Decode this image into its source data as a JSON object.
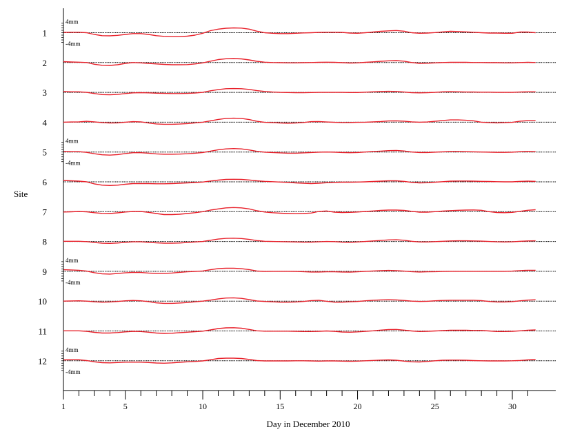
{
  "chart_data": {
    "type": "line",
    "title": "",
    "xlabel": "Day in December 2010",
    "ylabel": "Site",
    "xlim": [
      1,
      31.5
    ],
    "x_ticks": [
      1,
      5,
      10,
      15,
      20,
      25,
      30
    ],
    "scale_labels": {
      "top": "4mm",
      "bottom": "-4mm"
    },
    "scale_on_sites": [
      "1",
      "5",
      "9",
      "12"
    ],
    "series_color": "#e8202a",
    "baseline_color": "#000000",
    "x": [
      1,
      1.5,
      2,
      2.5,
      3,
      3.5,
      4,
      4.5,
      5,
      5.5,
      6,
      6.5,
      7,
      7.5,
      8,
      8.5,
      9,
      9.5,
      10,
      10.5,
      11,
      11.5,
      12,
      12.5,
      13,
      13.5,
      14,
      14.5,
      15,
      15.5,
      16,
      16.5,
      17,
      17.5,
      18,
      18.5,
      19,
      19.5,
      20,
      20.5,
      21,
      21.5,
      22,
      22.5,
      23,
      23.5,
      24,
      24.5,
      25,
      25.5,
      26,
      26.5,
      27,
      27.5,
      28,
      28.5,
      29,
      29.5,
      30,
      30.5,
      31,
      31.5
    ],
    "series": [
      {
        "site": "1",
        "values": [
          0.2,
          0.3,
          0.3,
          0,
          -1,
          -1.7,
          -1.8,
          -1.5,
          -1,
          -0.5,
          -0.5,
          -1,
          -1.7,
          -2.1,
          -2.3,
          -2.3,
          -2,
          -1.4,
          -0.3,
          1.2,
          2.1,
          2.6,
          2.8,
          2.7,
          2.1,
          0.9,
          0,
          -0.3,
          -0.5,
          -0.5,
          -0.3,
          -0.1,
          0,
          0.2,
          0.3,
          0.3,
          0.2,
          -0.2,
          -0.3,
          0,
          0.4,
          0.8,
          1.1,
          1.3,
          0.9,
          0,
          -0.3,
          -0.2,
          0.1,
          0.5,
          0.8,
          0.7,
          0.5,
          0.3,
          0,
          -0.2,
          -0.2,
          -0.3,
          -0.3,
          0.4,
          0.4,
          0
        ]
      },
      {
        "site": "2",
        "values": [
          0.5,
          0.3,
          0.2,
          0,
          -1,
          -1.6,
          -1.7,
          -1.3,
          -0.5,
          0,
          -0.2,
          -0.5,
          -0.8,
          -1.1,
          -1.3,
          -1.3,
          -1.2,
          -0.8,
          -0.2,
          0.8,
          1.7,
          2.2,
          2.3,
          2.1,
          1.5,
          0.7,
          0.2,
          0,
          -0.1,
          -0.2,
          -0.2,
          -0.1,
          0,
          0.1,
          0.2,
          0.1,
          -0.1,
          -0.3,
          -0.2,
          0.1,
          0.4,
          0.7,
          1,
          1.1,
          0.8,
          0,
          -0.5,
          -0.4,
          -0.2,
          0,
          0.1,
          0.1,
          0.1,
          0,
          0,
          -0.1,
          -0.1,
          -0.2,
          -0.2,
          0,
          0.1,
          0
        ]
      },
      {
        "site": "3",
        "values": [
          0.5,
          0.3,
          0.3,
          0,
          -0.7,
          -1.3,
          -1.4,
          -1.2,
          -0.7,
          -0.3,
          -0.2,
          -0.3,
          -0.5,
          -0.6,
          -0.7,
          -0.7,
          -0.6,
          -0.4,
          0,
          0.9,
          1.6,
          2.1,
          2.2,
          2.1,
          1.7,
          1,
          0.5,
          0.2,
          0,
          -0.1,
          -0.2,
          -0.2,
          -0.1,
          0,
          0,
          0,
          0,
          -0.1,
          -0.1,
          0.1,
          0.3,
          0.5,
          0.6,
          0.5,
          0.2,
          -0.2,
          -0.3,
          -0.2,
          0,
          0.3,
          0.4,
          0.3,
          0.2,
          0.2,
          0.1,
          0.1,
          0,
          0,
          0,
          0.2,
          0.3,
          0.3
        ]
      },
      {
        "site": "4",
        "values": [
          0,
          0.1,
          0.2,
          0.5,
          0.2,
          -0.3,
          -0.5,
          -0.4,
          0,
          0.3,
          0.2,
          -0.5,
          -1,
          -1.2,
          -1.2,
          -1.1,
          -0.8,
          -0.4,
          0,
          0.8,
          1.6,
          2.2,
          2.3,
          2.2,
          1.5,
          0.5,
          -0.1,
          -0.3,
          -0.5,
          -0.6,
          -0.5,
          -0.2,
          0.3,
          0.4,
          0.1,
          -0.1,
          -0.2,
          -0.2,
          -0.1,
          0,
          0.2,
          0.4,
          0.7,
          0.8,
          0.6,
          0.2,
          0,
          0.1,
          0.5,
          1,
          1.3,
          1.3,
          1.1,
          0.8,
          0,
          -0.3,
          -0.4,
          -0.3,
          -0.1,
          0.6,
          0.9,
          0.9
        ]
      },
      {
        "site": "5",
        "values": [
          0.3,
          0.2,
          0.2,
          -0.2,
          -1,
          -1.6,
          -1.8,
          -1.5,
          -0.9,
          -0.4,
          -0.4,
          -0.7,
          -1.1,
          -1.3,
          -1.3,
          -1.2,
          -1,
          -0.7,
          -0.3,
          0.5,
          1.3,
          1.8,
          2,
          1.8,
          1.2,
          0.4,
          -0.1,
          -0.3,
          -0.5,
          -0.7,
          -0.7,
          -0.5,
          -0.3,
          -0.1,
          0,
          -0.1,
          -0.3,
          -0.4,
          -0.3,
          0,
          0.3,
          0.5,
          0.8,
          0.9,
          0.6,
          0,
          -0.3,
          -0.3,
          -0.1,
          0.1,
          0.3,
          0.3,
          0.2,
          0.1,
          0,
          -0.1,
          -0.2,
          -0.2,
          -0.1,
          0.2,
          0.3,
          0.2
        ]
      },
      {
        "site": "6",
        "values": [
          0.8,
          0.6,
          0.4,
          0,
          -1.2,
          -1.9,
          -2.1,
          -1.9,
          -1.4,
          -1,
          -1,
          -1,
          -1.1,
          -1.1,
          -1,
          -0.8,
          -0.6,
          -0.4,
          -0.1,
          0.5,
          1,
          1.4,
          1.5,
          1.4,
          1.1,
          0.6,
          0.3,
          0.1,
          -0.1,
          -0.3,
          -0.6,
          -0.8,
          -1,
          -0.8,
          -0.5,
          -0.3,
          -0.2,
          -0.2,
          -0.1,
          0,
          0.2,
          0.4,
          0.6,
          0.6,
          0.3,
          -0.3,
          -0.6,
          -0.5,
          -0.2,
          0.1,
          0.4,
          0.5,
          0.5,
          0.4,
          0.3,
          0.2,
          0.1,
          0,
          0,
          0.3,
          0.4,
          0.3
        ]
      },
      {
        "site": "7",
        "values": [
          -0.2,
          -0.1,
          0.1,
          -0.1,
          -0.6,
          -1,
          -1.1,
          -0.7,
          -0.2,
          0.1,
          0.1,
          -0.4,
          -1.1,
          -1.7,
          -1.7,
          -1.5,
          -1.1,
          -0.6,
          0,
          0.9,
          1.6,
          2.2,
          2.4,
          2.2,
          1.6,
          0.5,
          -0.2,
          -0.6,
          -0.9,
          -1.1,
          -1.2,
          -1.1,
          -0.8,
          0.1,
          0.4,
          -0.3,
          -0.5,
          -0.4,
          -0.2,
          0.1,
          0.4,
          0.7,
          0.9,
          0.9,
          0.7,
          0.2,
          -0.3,
          -0.3,
          0,
          0.3,
          0.6,
          0.8,
          0.9,
          1,
          0.8,
          0,
          -0.5,
          -0.6,
          -0.4,
          0.2,
          0.8,
          1.1
        ]
      },
      {
        "site": "8",
        "values": [
          0.1,
          0.1,
          0.1,
          -0.1,
          -0.6,
          -1,
          -1.1,
          -0.9,
          -0.5,
          -0.2,
          -0.2,
          -0.5,
          -0.8,
          -1,
          -1,
          -0.9,
          -0.6,
          -0.3,
          0,
          0.7,
          1.4,
          1.8,
          1.9,
          1.7,
          1.2,
          0.5,
          0.1,
          0,
          -0.1,
          -0.2,
          -0.3,
          -0.4,
          -0.4,
          -0.2,
          0,
          -0.1,
          -0.4,
          -0.5,
          -0.3,
          0,
          0.3,
          0.6,
          0.9,
          1,
          0.7,
          0.1,
          -0.3,
          -0.3,
          -0.1,
          0.1,
          0.3,
          0.4,
          0.4,
          0.3,
          0.2,
          0,
          -0.2,
          -0.3,
          -0.2,
          0.1,
          0.3,
          0.4
        ]
      },
      {
        "site": "9",
        "values": [
          0.9,
          0.8,
          0.6,
          0.1,
          -0.8,
          -1.5,
          -1.6,
          -1.3,
          -0.9,
          -0.6,
          -0.7,
          -1,
          -1.2,
          -1.2,
          -1,
          -0.6,
          -0.3,
          -0.1,
          0.2,
          0.9,
          1.6,
          1.8,
          1.8,
          1.5,
          1,
          0.2,
          -0.1,
          0,
          0,
          0,
          -0.1,
          -0.2,
          -0.4,
          -0.4,
          -0.3,
          -0.3,
          -0.4,
          -0.5,
          -0.3,
          0,
          0.2,
          0.4,
          0.5,
          0.4,
          0.1,
          -0.2,
          -0.4,
          -0.3,
          -0.2,
          -0.1,
          0,
          0,
          0,
          0,
          0,
          0,
          0,
          0,
          0.1,
          0.4,
          0.6,
          0.6
        ]
      },
      {
        "site": "10",
        "values": [
          0,
          0.1,
          0.2,
          0,
          -0.4,
          -0.6,
          -0.5,
          -0.2,
          0.2,
          0.4,
          0.2,
          -0.3,
          -1,
          -1.3,
          -1.3,
          -1.1,
          -0.8,
          -0.4,
          0,
          0.6,
          1.3,
          1.8,
          1.9,
          1.6,
          0.9,
          0.1,
          -0.2,
          -0.4,
          -0.6,
          -0.6,
          -0.5,
          -0.2,
          0.3,
          0.5,
          -0.1,
          -0.6,
          -0.6,
          -0.4,
          -0.2,
          0.2,
          0.5,
          0.7,
          0.8,
          0.7,
          0.4,
          0,
          -0.2,
          -0.1,
          0.2,
          0.4,
          0.5,
          0.5,
          0.5,
          0.5,
          0.3,
          -0.2,
          -0.5,
          -0.5,
          -0.3,
          0.2,
          0.6,
          0.8
        ]
      },
      {
        "site": "11",
        "values": [
          0.1,
          0.1,
          0.1,
          -0.2,
          -0.8,
          -1.2,
          -1.2,
          -0.9,
          -0.5,
          -0.2,
          -0.3,
          -0.7,
          -1.2,
          -1.4,
          -1.3,
          -1,
          -0.7,
          -0.4,
          -0.1,
          0.6,
          1.4,
          1.8,
          1.9,
          1.6,
          0.9,
          0.1,
          -0.1,
          -0.1,
          -0.1,
          -0.1,
          -0.2,
          -0.3,
          -0.3,
          -0.2,
          0,
          -0.2,
          -0.6,
          -0.7,
          -0.5,
          -0.2,
          0.1,
          0.5,
          0.8,
          0.9,
          0.5,
          0,
          -0.3,
          -0.2,
          0,
          0.2,
          0.4,
          0.4,
          0.4,
          0.3,
          0.3,
          0,
          -0.3,
          -0.3,
          -0.2,
          0.1,
          0.4,
          0.6
        ]
      },
      {
        "site": "12",
        "values": [
          0.5,
          0.6,
          0.6,
          0.1,
          -0.6,
          -1.1,
          -1.2,
          -1,
          -0.8,
          -0.8,
          -0.8,
          -1,
          -1.3,
          -1.4,
          -1.2,
          -0.9,
          -0.6,
          -0.4,
          -0.1,
          0.6,
          1.3,
          1.5,
          1.5,
          1.3,
          0.8,
          0.1,
          -0.1,
          -0.1,
          -0.1,
          -0.1,
          0,
          0,
          -0.1,
          -0.2,
          -0.1,
          -0.1,
          -0.2,
          -0.3,
          -0.2,
          0,
          0.2,
          0.4,
          0.5,
          0.3,
          -0.2,
          -0.6,
          -0.7,
          -0.4,
          0,
          0.3,
          0.4,
          0.4,
          0.3,
          0.1,
          0,
          -0.1,
          -0.1,
          -0.1,
          0,
          0.2,
          0.5,
          0.7
        ]
      }
    ]
  }
}
